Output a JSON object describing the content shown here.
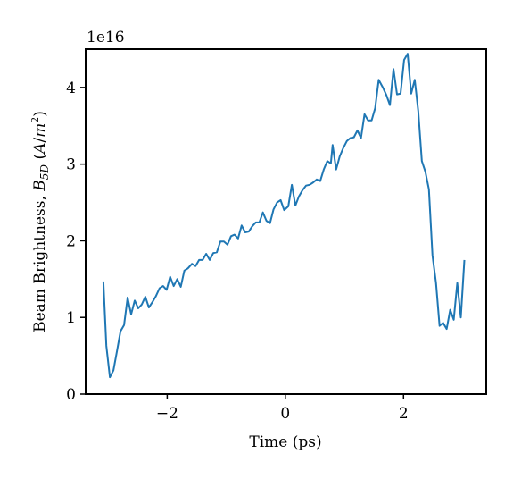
{
  "chart_data": {
    "type": "line",
    "y_label_parts": [
      "Beam Brightness, ",
      "B",
      "5D",
      " (",
      "A",
      "/",
      "m",
      "2",
      ")"
    ],
    "x_label": "Time (ps)",
    "y_offset_text": "1e16",
    "xlim": [
      -3.38,
      3.4
    ],
    "ylim": [
      0,
      4.5
    ],
    "xticks": [
      {
        "value": -2,
        "label": "−2"
      },
      0,
      2
    ],
    "yticks": [
      0,
      1,
      2,
      3,
      4
    ],
    "series": [
      {
        "color": "#1f77b4",
        "x": [
          -3.08,
          -3.03,
          -2.97,
          -2.91,
          -2.85,
          -2.79,
          -2.73,
          -2.67,
          -2.61,
          -2.55,
          -2.49,
          -2.43,
          -2.37,
          -2.31,
          -2.25,
          -2.19,
          -2.13,
          -2.07,
          -2.01,
          -1.95,
          -1.89,
          -1.83,
          -1.77,
          -1.71,
          -1.65,
          -1.58,
          -1.52,
          -1.46,
          -1.4,
          -1.34,
          -1.28,
          -1.22,
          -1.16,
          -1.1,
          -1.04,
          -0.98,
          -0.92,
          -0.86,
          -0.8,
          -0.74,
          -0.68,
          -0.62,
          -0.56,
          -0.5,
          -0.44,
          -0.38,
          -0.32,
          -0.26,
          -0.2,
          -0.14,
          -0.08,
          -0.02,
          0.05,
          0.11,
          0.17,
          0.23,
          0.29,
          0.35,
          0.41,
          0.47,
          0.53,
          0.59,
          0.65,
          0.71,
          0.77,
          0.8,
          0.86,
          0.92,
          0.98,
          1.04,
          1.1,
          1.16,
          1.22,
          1.28,
          1.34,
          1.4,
          1.46,
          1.52,
          1.58,
          1.65,
          1.71,
          1.77,
          1.83,
          1.89,
          1.95,
          2.01,
          2.07,
          2.13,
          2.19,
          2.25,
          2.31,
          2.37,
          2.43,
          2.49,
          2.55,
          2.61,
          2.67,
          2.73,
          2.79,
          2.85,
          2.91,
          2.97,
          3.03
        ],
        "values": [
          1.47,
          0.63,
          0.22,
          0.31,
          0.56,
          0.82,
          0.9,
          1.26,
          1.04,
          1.22,
          1.12,
          1.17,
          1.27,
          1.13,
          1.2,
          1.28,
          1.38,
          1.41,
          1.36,
          1.53,
          1.41,
          1.5,
          1.4,
          1.61,
          1.64,
          1.7,
          1.67,
          1.75,
          1.75,
          1.83,
          1.75,
          1.84,
          1.85,
          1.99,
          1.99,
          1.95,
          2.06,
          2.08,
          2.03,
          2.2,
          2.11,
          2.12,
          2.19,
          2.24,
          2.24,
          2.37,
          2.26,
          2.23,
          2.41,
          2.5,
          2.53,
          2.4,
          2.45,
          2.73,
          2.46,
          2.58,
          2.66,
          2.72,
          2.73,
          2.76,
          2.8,
          2.78,
          2.93,
          3.04,
          3.01,
          3.25,
          2.93,
          3.1,
          3.21,
          3.3,
          3.34,
          3.35,
          3.44,
          3.34,
          3.65,
          3.57,
          3.57,
          3.73,
          4.1,
          4.0,
          3.9,
          3.77,
          4.24,
          3.91,
          3.92,
          4.36,
          4.44,
          3.92,
          4.1,
          3.69,
          3.04,
          2.9,
          2.67,
          1.81,
          1.45,
          0.89,
          0.93,
          0.85,
          1.1,
          0.97,
          1.45,
          1.0,
          1.75
        ]
      }
    ]
  }
}
